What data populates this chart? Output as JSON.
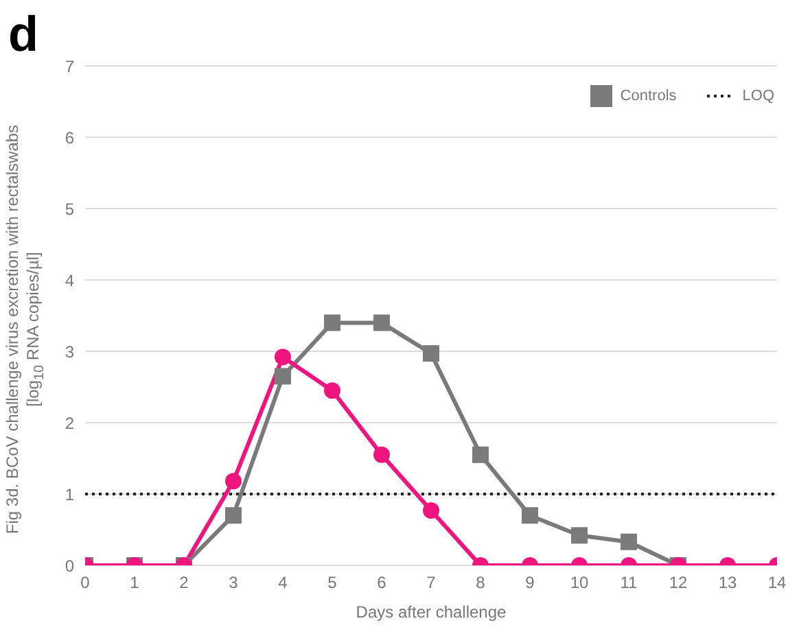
{
  "chart_data": {
    "type": "line",
    "annotations": [
      "d"
    ],
    "xlabel": "Days after challenge",
    "ylabel": "Fig 3d. BCoV challenge virus excretion with rectalswabs [log$_{10}$ RNA copies/µl]",
    "x": [
      0,
      1,
      2,
      3,
      4,
      5,
      6,
      7,
      8,
      9,
      10,
      11,
      12,
      13,
      14
    ],
    "series": [
      {
        "name": "Controls",
        "color": "#7a7a7a",
        "marker": "square",
        "values": [
          0,
          0,
          0,
          0.7,
          2.65,
          3.4,
          3.4,
          2.97,
          1.55,
          0.7,
          0.42,
          0.33,
          0,
          null,
          null
        ]
      },
      {
        "color": "#f0147f",
        "marker": "circle",
        "values": [
          0,
          0,
          0,
          1.18,
          2.92,
          2.45,
          1.55,
          0.77,
          0,
          0,
          0,
          0,
          0,
          0,
          0
        ]
      }
    ],
    "xlim": [
      0,
      14
    ],
    "xticks": [
      0,
      1,
      2,
      3,
      4,
      5,
      6,
      7,
      8,
      9,
      10,
      11,
      12,
      13,
      14
    ],
    "ylim": [
      0,
      7
    ],
    "yticks": [
      0,
      1,
      2,
      3,
      4,
      5,
      6,
      7
    ],
    "grid": "y",
    "legend": "top right",
    "ref_lines": [
      {
        "axis": "y",
        "value": 1,
        "label": "LOQ",
        "color": "#222222",
        "line_style": "dotted"
      }
    ]
  }
}
